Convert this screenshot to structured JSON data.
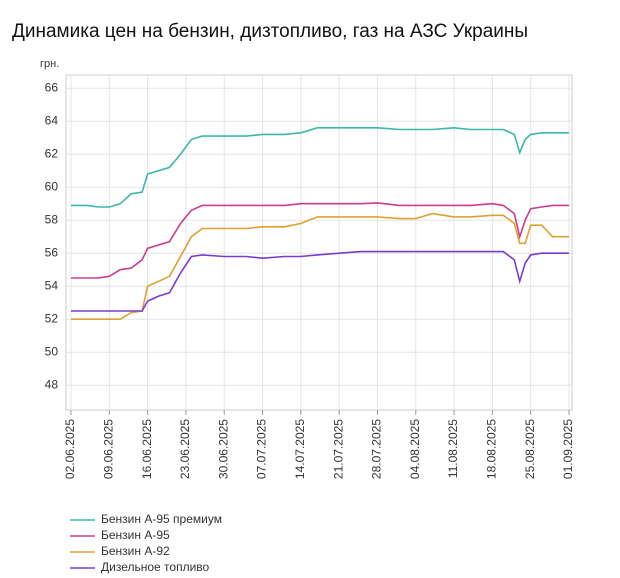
{
  "chart_data": {
    "type": "line",
    "title": "Динамика цен на бензин, дизтопливо, газ на АЗС Украины",
    "y_label": "грн.",
    "x": [
      "02.06.2025",
      "05.06.2025",
      "07.06.2025",
      "09.06.2025",
      "11.06.2025",
      "13.06.2025",
      "15.06.2025",
      "16.06.2025",
      "18.06.2025",
      "20.06.2025",
      "22.06.2025",
      "24.06.2025",
      "26.06.2025",
      "30.06.2025",
      "04.07.2025",
      "07.07.2025",
      "11.07.2025",
      "14.07.2025",
      "17.07.2025",
      "21.07.2025",
      "25.07.2025",
      "28.07.2025",
      "01.08.2025",
      "04.08.2025",
      "07.08.2025",
      "11.08.2025",
      "14.08.2025",
      "18.08.2025",
      "20.08.2025",
      "22.08.2025",
      "23.08.2025",
      "24.08.2025",
      "25.08.2025",
      "27.08.2025",
      "29.08.2025",
      "01.09.2025"
    ],
    "series": [
      {
        "name": "Бензин А-95 премиум",
        "color": "#3cb8a8",
        "values": [
          58.9,
          58.9,
          58.8,
          58.8,
          59.0,
          59.6,
          59.7,
          60.8,
          61.0,
          61.2,
          62.0,
          62.9,
          63.1,
          63.1,
          63.1,
          63.2,
          63.2,
          63.3,
          63.6,
          63.6,
          63.6,
          63.6,
          63.5,
          63.5,
          63.5,
          63.6,
          63.5,
          63.5,
          63.5,
          63.2,
          62.1,
          62.9,
          63.2,
          63.3,
          63.3,
          63.3
        ]
      },
      {
        "name": "Бензин А-95",
        "color": "#cc3c8c",
        "values": [
          54.5,
          54.5,
          54.5,
          54.6,
          55.0,
          55.1,
          55.6,
          56.3,
          56.5,
          56.7,
          57.8,
          58.6,
          58.9,
          58.9,
          58.9,
          58.9,
          58.9,
          59.0,
          59.0,
          59.0,
          59.0,
          59.05,
          58.9,
          58.9,
          58.9,
          58.9,
          58.9,
          59.0,
          58.9,
          58.4,
          57.0,
          58.0,
          58.7,
          58.8,
          58.9,
          58.9
        ]
      },
      {
        "name": "Бензин А-92",
        "color": "#e0a030",
        "values": [
          52.0,
          52.0,
          52.0,
          52.0,
          52.0,
          52.4,
          52.5,
          54.0,
          54.3,
          54.6,
          55.8,
          57.0,
          57.5,
          57.5,
          57.5,
          57.6,
          57.6,
          57.8,
          58.2,
          58.2,
          58.2,
          58.2,
          58.1,
          58.1,
          58.4,
          58.2,
          58.2,
          58.3,
          58.3,
          57.8,
          56.6,
          56.6,
          57.7,
          57.7,
          57.0,
          57.0
        ]
      },
      {
        "name": "Дизельное топливо",
        "color": "#7a3cd0",
        "values": [
          52.5,
          52.5,
          52.5,
          52.5,
          52.5,
          52.5,
          52.5,
          53.1,
          53.4,
          53.6,
          54.8,
          55.8,
          55.9,
          55.8,
          55.8,
          55.7,
          55.8,
          55.8,
          55.9,
          56.0,
          56.1,
          56.1,
          56.1,
          56.1,
          56.1,
          56.1,
          56.1,
          56.1,
          56.1,
          55.6,
          54.3,
          55.4,
          55.9,
          56.0,
          56.0,
          56.0
        ]
      }
    ],
    "xlim": [
      "02.06.2025",
      "01.09.2025"
    ],
    "xticks": [
      "02.06.2025",
      "09.06.2025",
      "16.06.2025",
      "23.06.2025",
      "30.06.2025",
      "07.07.2025",
      "14.07.2025",
      "21.07.2025",
      "28.07.2025",
      "04.08.2025",
      "11.08.2025",
      "18.08.2025",
      "25.08.2025",
      "01.09.2025"
    ],
    "ylim": [
      46.5,
      66.8
    ],
    "yticks": [
      48,
      50,
      52,
      54,
      56,
      58,
      60,
      62,
      64,
      66
    ],
    "grid": true
  }
}
